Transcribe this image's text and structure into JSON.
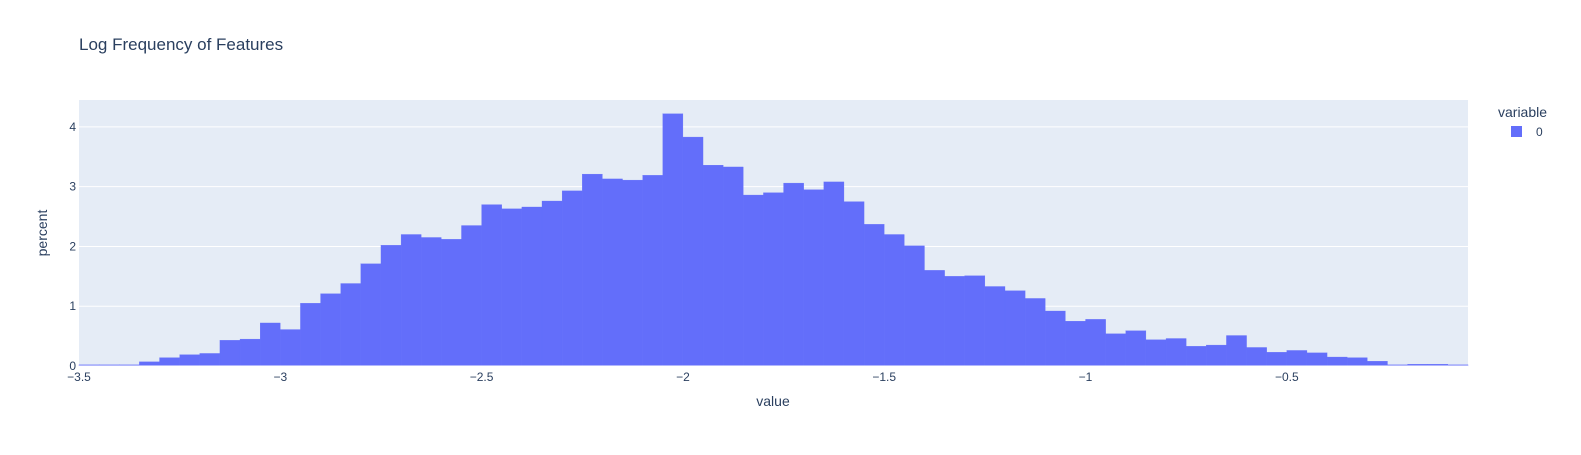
{
  "chart_data": {
    "type": "histogram",
    "title": "Log Frequency of Features",
    "xlabel": "value",
    "ylabel": "percent",
    "xlim": [
      -3.5,
      -0.05
    ],
    "ylim": [
      0,
      4.45
    ],
    "bin_start": -3.5,
    "bin_width": 0.05,
    "x_ticks": [
      -3.5,
      -3,
      -2.5,
      -2,
      -1.5,
      -1,
      -0.5
    ],
    "x_tick_labels": [
      "−3.5",
      "−3",
      "−2.5",
      "−2",
      "−1.5",
      "−1",
      "−0.5"
    ],
    "y_ticks": [
      0,
      1,
      2,
      3,
      4
    ],
    "y_tick_labels": [
      "0",
      "1",
      "2",
      "3",
      "4"
    ],
    "grid": true,
    "legend": {
      "title": "variable",
      "position": "top-right"
    },
    "series": [
      {
        "name": "0",
        "color": "#636efa",
        "values": [
          0.02,
          0.02,
          0.02,
          0.07,
          0.14,
          0.19,
          0.21,
          0.43,
          0.45,
          0.72,
          0.61,
          1.05,
          1.21,
          1.38,
          1.71,
          2.02,
          2.2,
          2.15,
          2.12,
          2.35,
          2.7,
          2.63,
          2.66,
          2.76,
          2.93,
          3.21,
          3.13,
          3.11,
          3.19,
          4.22,
          3.83,
          3.36,
          3.33,
          2.86,
          2.9,
          3.06,
          2.95,
          3.08,
          2.75,
          2.37,
          2.2,
          2.01,
          1.6,
          1.5,
          1.51,
          1.33,
          1.26,
          1.13,
          0.92,
          0.75,
          0.78,
          0.54,
          0.59,
          0.44,
          0.46,
          0.33,
          0.35,
          0.51,
          0.31,
          0.23,
          0.26,
          0.22,
          0.15,
          0.14,
          0.08,
          0.02,
          0.03,
          0.03,
          0.02
        ]
      }
    ]
  }
}
